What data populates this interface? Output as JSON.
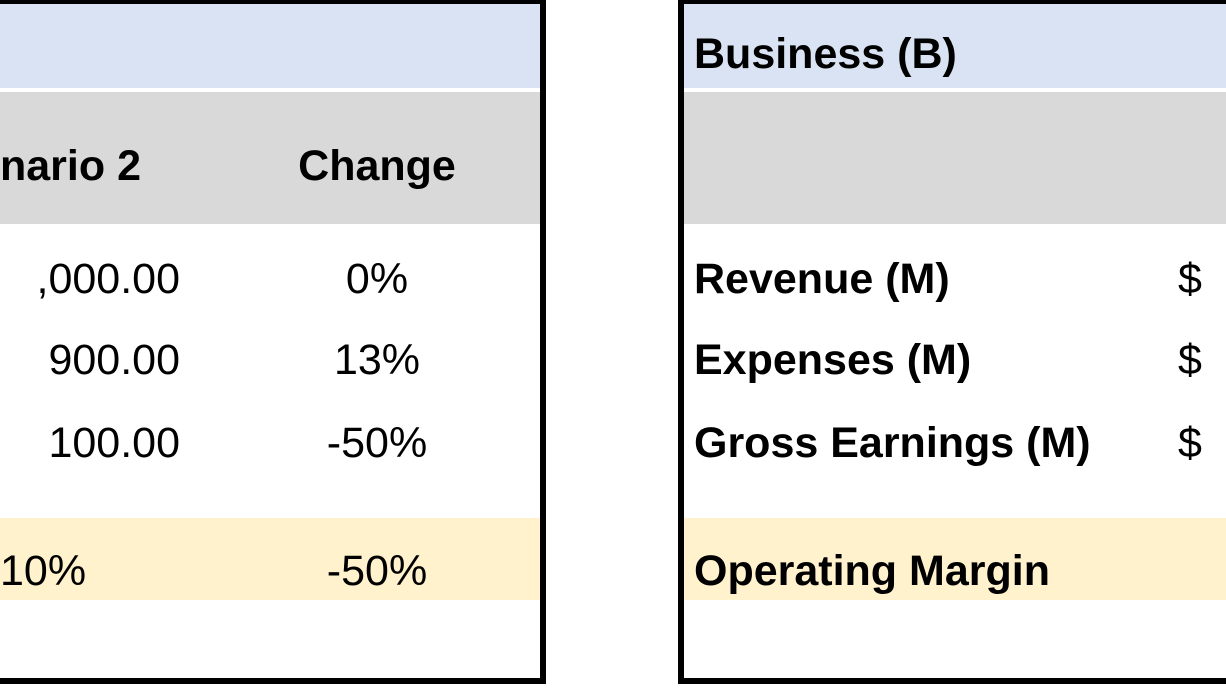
{
  "left_table": {
    "header": {
      "scenario2": "nario 2",
      "change": "Change"
    },
    "rows": [
      {
        "scenario2": ",000.00",
        "change": "0%"
      },
      {
        "scenario2": "900.00",
        "change": "13%"
      },
      {
        "scenario2": "100.00",
        "change": "-50%"
      }
    ],
    "margin_row": {
      "scenario2": "10%",
      "change": "-50%"
    }
  },
  "right_table": {
    "title": "Business (B)",
    "rows": [
      {
        "label": "Revenue (M)",
        "currency": "$"
      },
      {
        "label": "Expenses (M)",
        "currency": "$"
      },
      {
        "label": "Gross Earnings (M)",
        "currency": "$"
      }
    ],
    "margin_row": {
      "label": "Operating Margin"
    }
  },
  "colors": {
    "title_band": "#dae3f3",
    "header_band": "#d9d9d9",
    "margin_band": "#fff2cc",
    "border": "#000000"
  }
}
